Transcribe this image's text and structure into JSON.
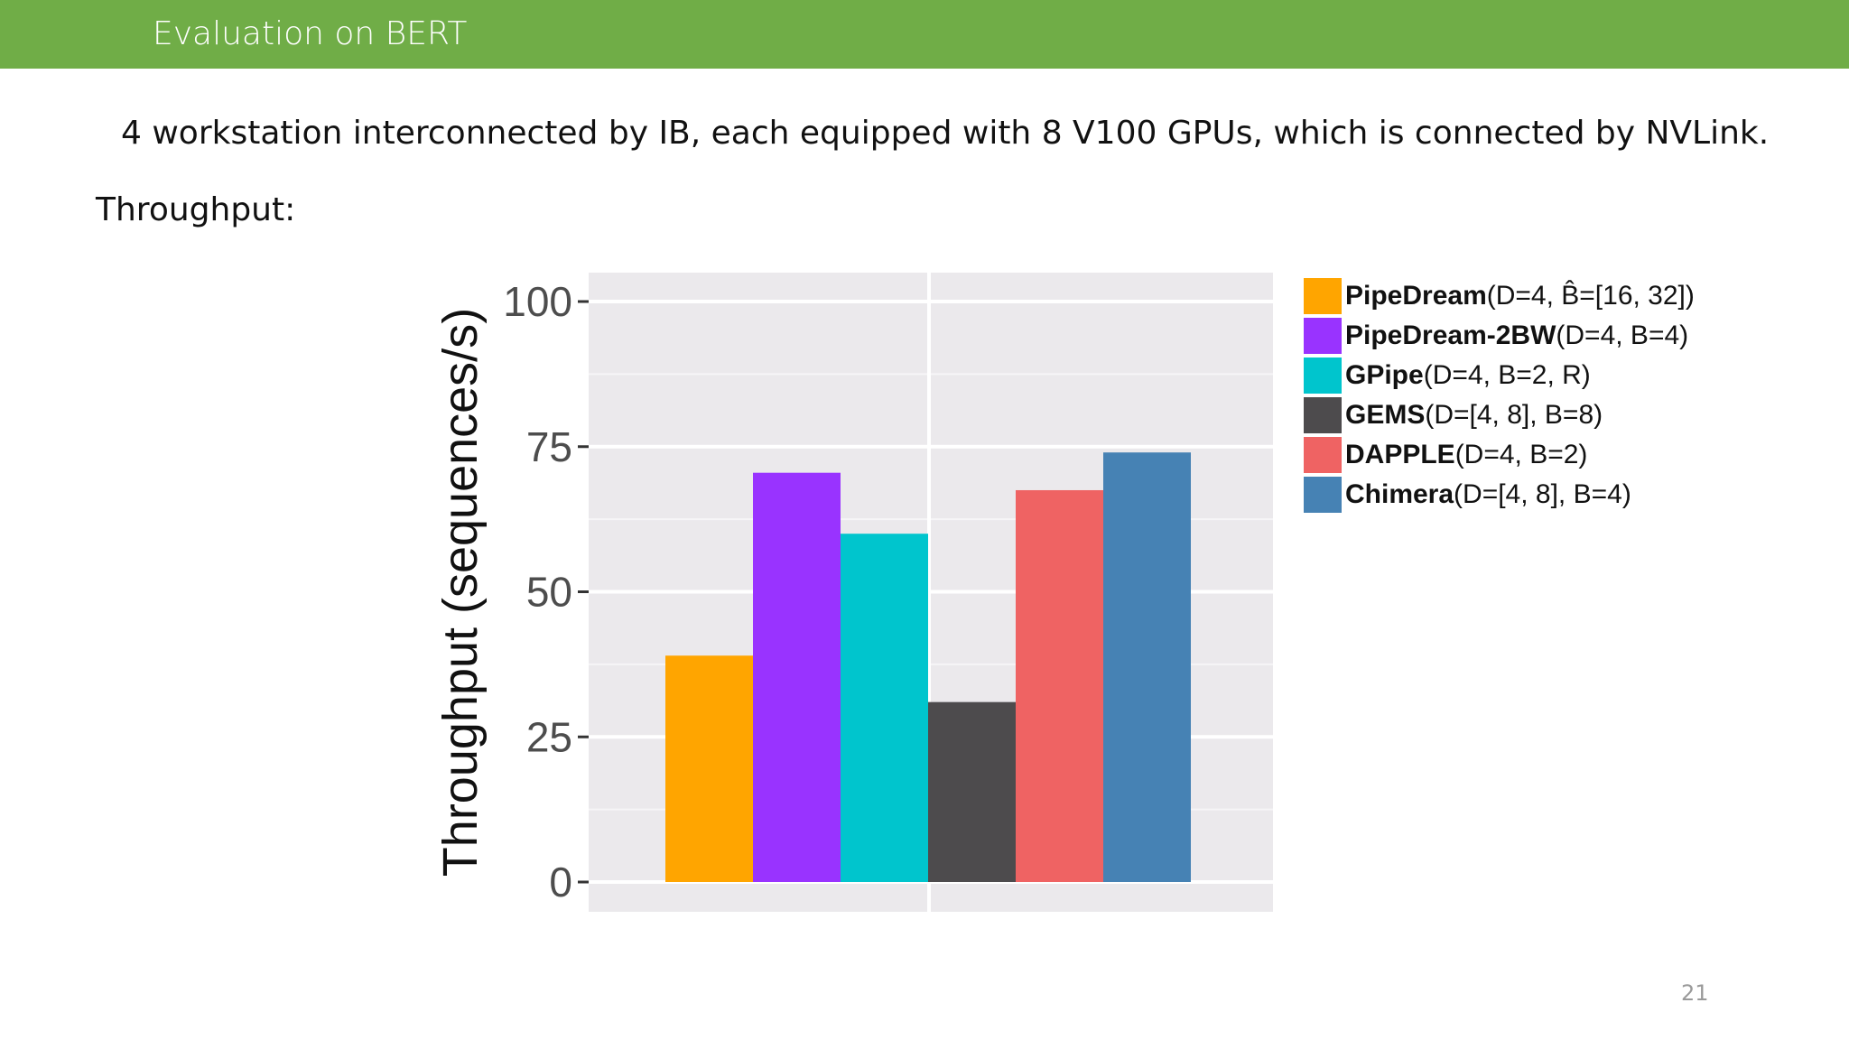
{
  "header": {
    "title": "Evaluation on BERT"
  },
  "slide": {
    "subtitle": "4 workstation interconnected by IB, each equipped with 8 V100 GPUs, which is connected by NVLink.",
    "throughput_label": "Throughput:",
    "page_number": "21"
  },
  "chart_data": {
    "type": "bar",
    "title": "",
    "xlabel": "",
    "ylabel": "Throughput (sequences/s)",
    "ylim": [
      0,
      105
    ],
    "yticks": [
      0,
      25,
      50,
      75,
      100
    ],
    "grid": true,
    "legend_position": "right",
    "series": [
      {
        "name": "PipeDream(D=4, B̂=[16, 32])",
        "value": 39,
        "color": "#ffa500"
      },
      {
        "name": "PipeDream-2BW(D=4, B=4)",
        "value": 70.5,
        "color": "#9933ff"
      },
      {
        "name": "GPipe(D=4, B=2, R)",
        "value": 60,
        "color": "#00c5cd"
      },
      {
        "name": "GEMS(D=[4, 8], B=8)",
        "value": 31,
        "color": "#4d4b4d"
      },
      {
        "name": "DAPPLE(D=4, B=2)",
        "value": 67.5,
        "color": "#ef6363"
      },
      {
        "name": "Chimera(D=[4, 8], B=4)",
        "value": 74,
        "color": "#4682b4"
      }
    ],
    "legend": [
      {
        "bold": "PipeDream",
        "rest": "(D=4, B̂=[16, 32])"
      },
      {
        "bold": "PipeDream-2BW",
        "rest": "(D=4, B=4)"
      },
      {
        "bold": "GPipe",
        "rest": "(D=4, B=2, R)"
      },
      {
        "bold": "GEMS",
        "rest": "(D=[4, 8], B=8)"
      },
      {
        "bold": "DAPPLE",
        "rest": "(D=4, B=2)"
      },
      {
        "bold": "Chimera",
        "rest": "(D=[4, 8], B=4)"
      }
    ]
  }
}
